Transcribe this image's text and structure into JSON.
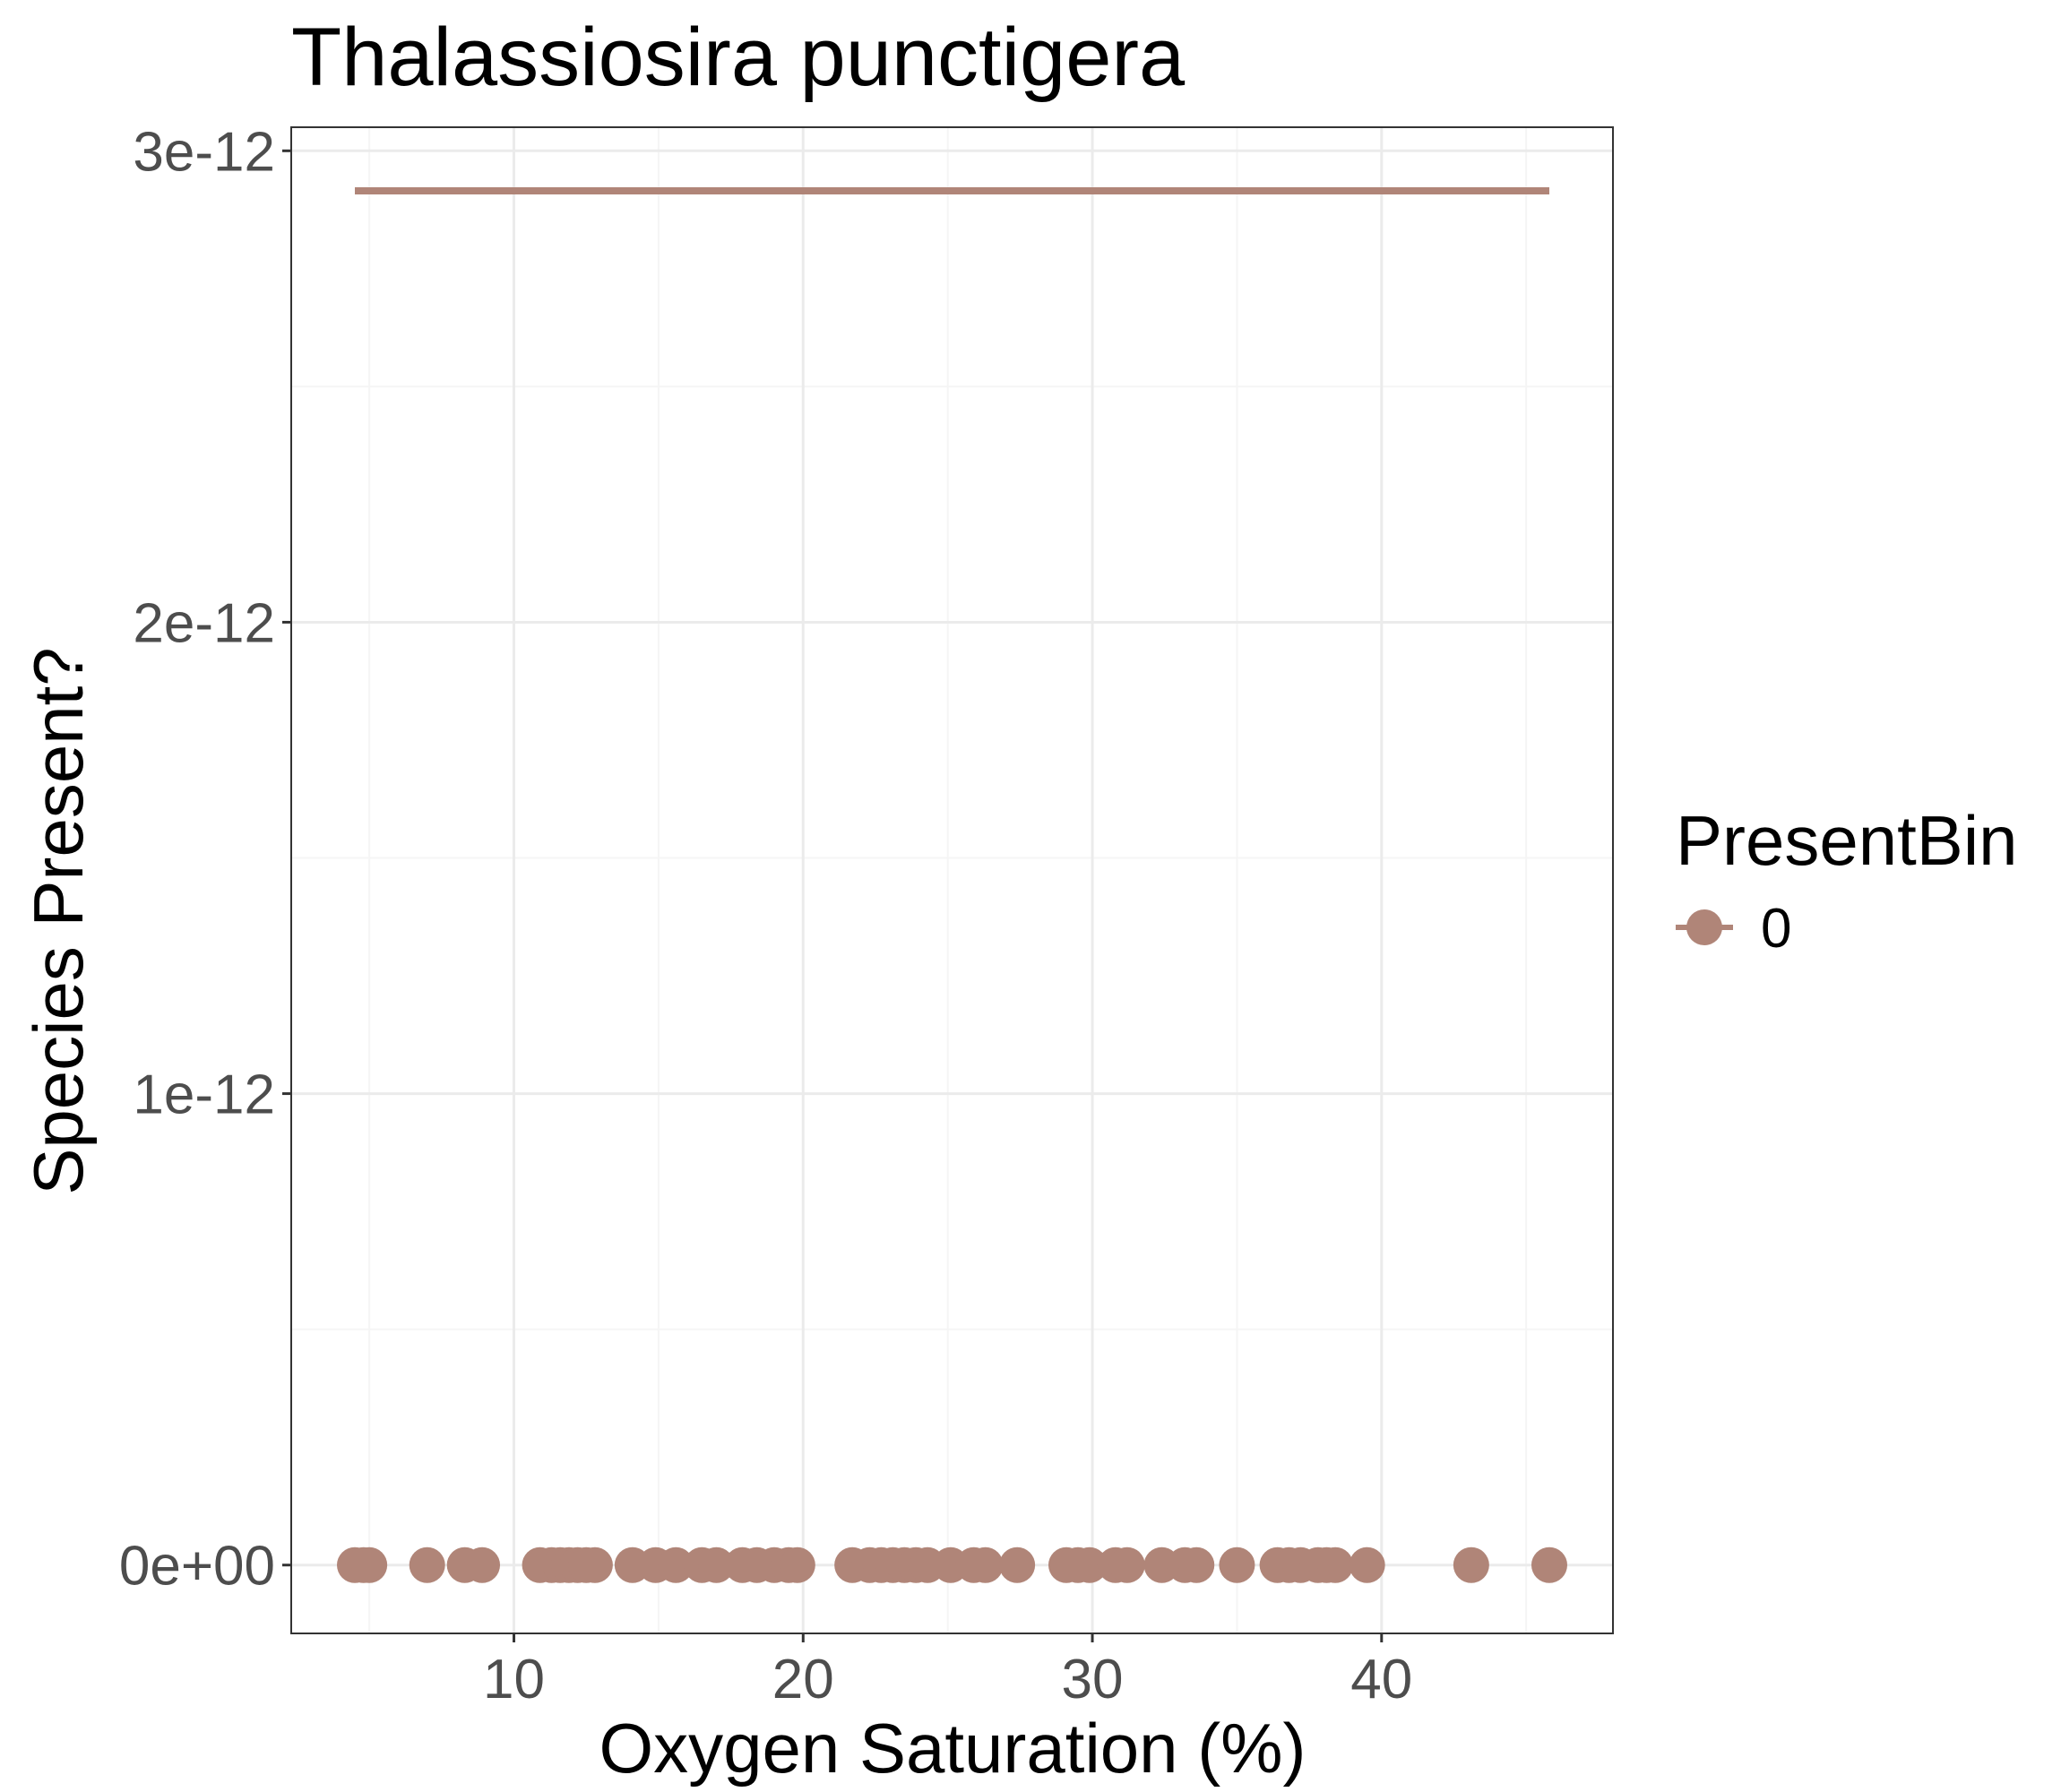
{
  "chart_data": {
    "type": "scatter",
    "title": "Thalassiosira punctigera",
    "xlabel": "Oxygen Saturation (%)",
    "ylabel": "Species Present?",
    "xlim": [
      2.3,
      48.0
    ],
    "ylim": [
      -1.45e-13,
      3.05e-12
    ],
    "x_ticks": [
      10,
      20,
      30,
      40
    ],
    "x_tick_labels": [
      "10",
      "20",
      "30",
      "40"
    ],
    "y_ticks": [
      0,
      1e-12,
      2e-12,
      3e-12
    ],
    "y_tick_labels": [
      "0e+00",
      "1e-12",
      "2e-12",
      "3e-12"
    ],
    "grid": true,
    "legend": {
      "title": "PresentBin",
      "position": "right",
      "entries": [
        "0"
      ]
    },
    "colors": {
      "series": "#b08578",
      "grid_major": "#ebebeb",
      "grid_minor": "#f5f5f5",
      "panel_border": "#333333",
      "tick_text": "#4d4d4d"
    },
    "series": [
      {
        "name": "0",
        "points_y": 0,
        "x": [
          4.5,
          4.8,
          5.0,
          7.0,
          8.3,
          8.9,
          10.9,
          11.3,
          11.6,
          11.9,
          12.2,
          12.5,
          12.8,
          14.1,
          14.9,
          15.6,
          16.5,
          17.0,
          17.9,
          18.4,
          19.0,
          19.5,
          19.8,
          21.7,
          22.3,
          22.7,
          23.1,
          23.5,
          23.9,
          24.3,
          25.1,
          25.9,
          26.3,
          27.4,
          29.1,
          29.5,
          29.9,
          30.8,
          31.2,
          32.4,
          33.2,
          33.6,
          35.0,
          36.4,
          36.8,
          37.2,
          37.8,
          38.1,
          38.4,
          39.5,
          43.1,
          45.8
        ],
        "trend_line": {
          "x": [
            4.5,
            45.8
          ],
          "y": [
            2.915e-12,
            2.915e-12
          ]
        }
      }
    ]
  }
}
